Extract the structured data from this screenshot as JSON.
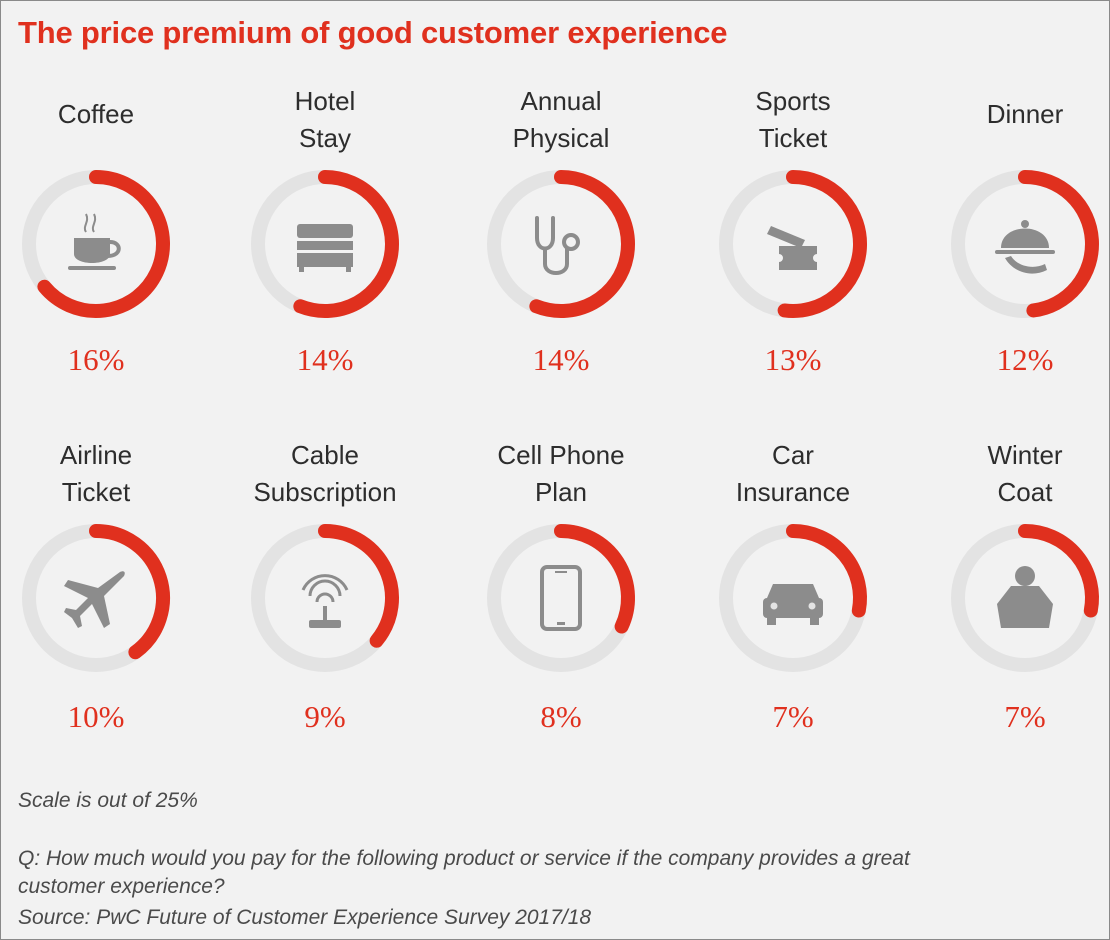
{
  "title": "The price premium of good customer experience",
  "colors": {
    "accent": "#e0301e",
    "track": "#e3e3e3",
    "icon": "#8c8c8c",
    "background": "#f2f2f2"
  },
  "chart_data": {
    "type": "donut",
    "scale_max": 25,
    "items": [
      {
        "label_lines": [
          "Coffee"
        ],
        "value": 16,
        "value_label": "16%",
        "icon": "coffee-cup-icon"
      },
      {
        "label_lines": [
          "Hotel",
          "Stay"
        ],
        "value": 14,
        "value_label": "14%",
        "icon": "bed-icon"
      },
      {
        "label_lines": [
          "Annual",
          "Physical"
        ],
        "value": 14,
        "value_label": "14%",
        "icon": "stethoscope-icon"
      },
      {
        "label_lines": [
          "Sports",
          "Ticket"
        ],
        "value": 13,
        "value_label": "13%",
        "icon": "ticket-icon"
      },
      {
        "label_lines": [
          "Dinner"
        ],
        "value": 12,
        "value_label": "12%",
        "icon": "cloche-icon"
      },
      {
        "label_lines": [
          "Airline",
          "Ticket"
        ],
        "value": 10,
        "value_label": "10%",
        "icon": "airplane-icon"
      },
      {
        "label_lines": [
          "Cable",
          "Subscription"
        ],
        "value": 9,
        "value_label": "9%",
        "icon": "antenna-icon"
      },
      {
        "label_lines": [
          "Cell Phone",
          "Plan"
        ],
        "value": 8,
        "value_label": "8%",
        "icon": "phone-icon"
      },
      {
        "label_lines": [
          "Car",
          "Insurance"
        ],
        "value": 7,
        "value_label": "7%",
        "icon": "car-icon"
      },
      {
        "label_lines": [
          "Winter",
          "Coat"
        ],
        "value": 7,
        "value_label": "7%",
        "icon": "coat-icon"
      }
    ]
  },
  "notes": {
    "scale": "Scale is out of 25%",
    "question": "Q: How much would you pay for the following product or service if the company provides a great customer experience?",
    "source": "Source: PwC Future of Customer Experience Survey 2017/18"
  }
}
